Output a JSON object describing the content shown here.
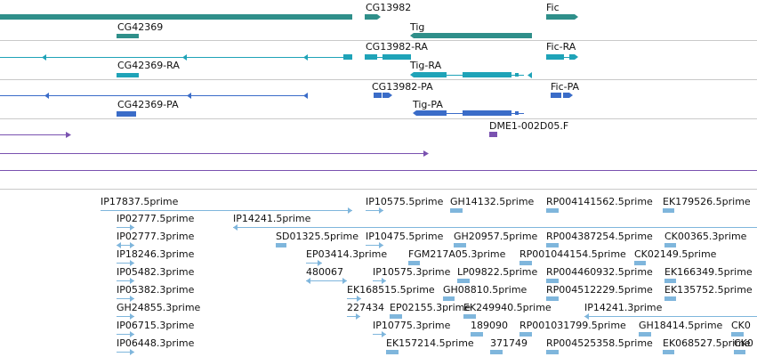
{
  "colors": {
    "gene": "#2f8f8a",
    "mrna_cyan": "#1fa3b8",
    "protein_blue": "#3a6cc8",
    "purple": "#7a52b0",
    "est": "#7fb6dc",
    "separator": "#c9c9c9"
  },
  "tracks": {
    "genes": [
      {
        "label": "CG13982"
      },
      {
        "label": "Fic"
      },
      {
        "label": "CG42369"
      },
      {
        "label": "Tig"
      }
    ],
    "transcripts": [
      {
        "label": "CG13982-RA"
      },
      {
        "label": "Fic-RA"
      },
      {
        "label": "CG42369-RA"
      },
      {
        "label": "Tig-RA"
      }
    ],
    "proteins": [
      {
        "label": "CG13982-PA"
      },
      {
        "label": "Fic-PA"
      },
      {
        "label": "CG42369-PA"
      },
      {
        "label": "Tig-PA"
      }
    ],
    "insertion": {
      "label": "DME1-002D05.F"
    },
    "ests": [
      {
        "label": "IP17837.5prime"
      },
      {
        "label": "IP10575.5prime"
      },
      {
        "label": "GH14132.5prime"
      },
      {
        "label": "RP004141562.5prime"
      },
      {
        "label": "EK179526.5prime"
      },
      {
        "label": "IP02777.5prime"
      },
      {
        "label": "IP14241.5prime"
      },
      {
        "label": "IP02777.3prime"
      },
      {
        "label": "SD01325.5prime"
      },
      {
        "label": "IP10475.5prime"
      },
      {
        "label": "GH20957.5prime"
      },
      {
        "label": "RP004387254.5prime"
      },
      {
        "label": "CK00365.3prime"
      },
      {
        "label": "IP18246.3prime"
      },
      {
        "label": "EP03414.3prime"
      },
      {
        "label": "FGM217A05.3prime"
      },
      {
        "label": "RP001044154.5prime"
      },
      {
        "label": "CK02149.5prime"
      },
      {
        "label": "IP05482.3prime"
      },
      {
        "label": "480067"
      },
      {
        "label": "IP10575.3prime"
      },
      {
        "label": "LP09822.5prime"
      },
      {
        "label": "RP004460932.5prime"
      },
      {
        "label": "EK166349.5prime"
      },
      {
        "label": "IP05382.3prime"
      },
      {
        "label": "EK168515.5prime"
      },
      {
        "label": "GH08810.5prime"
      },
      {
        "label": "RP004512229.5prime"
      },
      {
        "label": "EK135752.5prime"
      },
      {
        "label": "GH24855.3prime"
      },
      {
        "label": "227434"
      },
      {
        "label": "EP02155.3prime"
      },
      {
        "label": "EK249940.5prime"
      },
      {
        "label": "IP14241.3prime"
      },
      {
        "label": "IP06715.3prime"
      },
      {
        "label": "IP10775.3prime"
      },
      {
        "label": "189090"
      },
      {
        "label": "RP001031799.5prime"
      },
      {
        "label": "GH18414.5prime"
      },
      {
        "label": "CK0"
      },
      {
        "label": "IP06448.3prime"
      },
      {
        "label": "EK157214.5prime"
      },
      {
        "label": "371749"
      },
      {
        "label": "RP004525358.5prime"
      },
      {
        "label": "EK068527.5prime"
      },
      {
        "label": "CK0"
      }
    ]
  }
}
